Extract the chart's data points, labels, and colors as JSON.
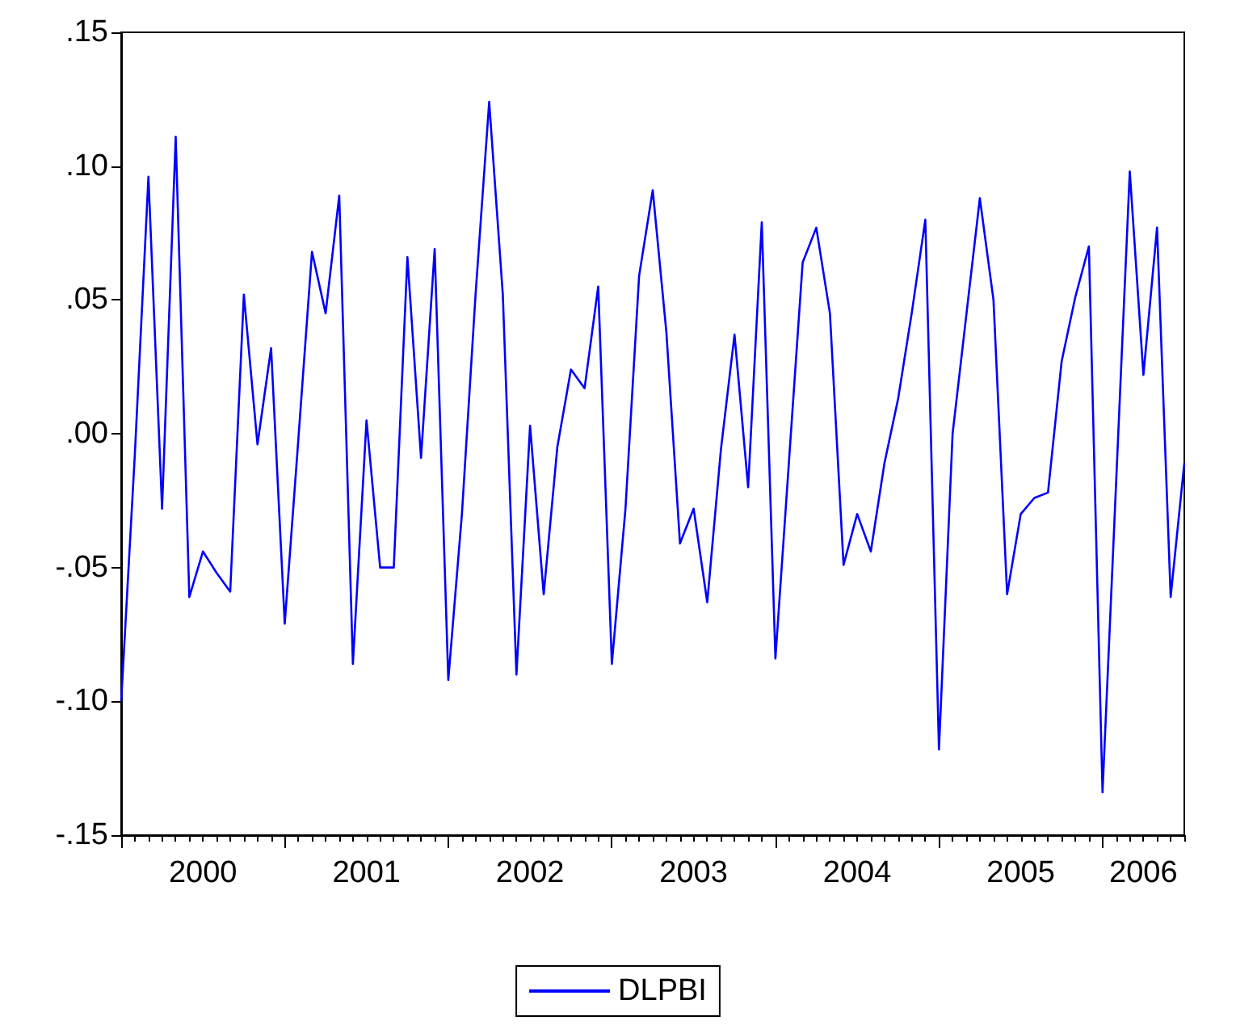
{
  "chart_data": {
    "type": "line",
    "x": [
      "2000-01",
      "2000-02",
      "2000-03",
      "2000-04",
      "2000-05",
      "2000-06",
      "2000-07",
      "2000-08",
      "2000-09",
      "2000-10",
      "2000-11",
      "2000-12",
      "2001-01",
      "2001-02",
      "2001-03",
      "2001-04",
      "2001-05",
      "2001-06",
      "2001-07",
      "2001-08",
      "2001-09",
      "2001-10",
      "2001-11",
      "2001-12",
      "2002-01",
      "2002-02",
      "2002-03",
      "2002-04",
      "2002-05",
      "2002-06",
      "2002-07",
      "2002-08",
      "2002-09",
      "2002-10",
      "2002-11",
      "2002-12",
      "2003-01",
      "2003-02",
      "2003-03",
      "2003-04",
      "2003-05",
      "2003-06",
      "2003-07",
      "2003-08",
      "2003-09",
      "2003-10",
      "2003-11",
      "2003-12",
      "2004-01",
      "2004-02",
      "2004-03",
      "2004-04",
      "2004-05",
      "2004-06",
      "2004-07",
      "2004-08",
      "2004-09",
      "2004-10",
      "2004-11",
      "2004-12",
      "2005-01",
      "2005-02",
      "2005-03",
      "2005-04",
      "2005-05",
      "2005-06",
      "2005-07",
      "2005-08",
      "2005-09",
      "2005-10",
      "2005-11",
      "2005-12",
      "2006-01",
      "2006-02",
      "2006-03",
      "2006-04",
      "2006-05",
      "2006-06",
      "2006-07"
    ],
    "series": [
      {
        "name": "DLPBI",
        "color": "#0000ff",
        "values": [
          -0.1,
          -0.008,
          0.096,
          -0.028,
          0.111,
          -0.061,
          -0.044,
          -0.052,
          -0.059,
          0.052,
          -0.004,
          0.032,
          -0.071,
          -0.002,
          0.068,
          0.045,
          0.089,
          -0.086,
          0.005,
          -0.05,
          -0.05,
          0.066,
          -0.009,
          0.069,
          -0.092,
          -0.03,
          0.052,
          0.124,
          0.052,
          -0.09,
          0.003,
          -0.06,
          -0.005,
          0.024,
          0.017,
          0.055,
          -0.086,
          -0.028,
          0.059,
          0.091,
          0.038,
          -0.041,
          -0.028,
          -0.063,
          -0.006,
          0.037,
          -0.02,
          0.079,
          -0.084,
          -0.01,
          0.064,
          0.077,
          0.045,
          -0.049,
          -0.03,
          -0.044,
          -0.011,
          0.013,
          0.045,
          0.08,
          -0.118,
          0.0,
          0.044,
          0.088,
          0.05,
          -0.06,
          -0.03,
          -0.024,
          -0.022,
          0.027,
          0.051,
          0.07,
          -0.134,
          -0.018,
          0.098,
          0.022,
          0.077,
          -0.061,
          -0.011
        ]
      }
    ],
    "xlim": [
      "2000-01",
      "2006-07"
    ],
    "xticks": [
      {
        "value": "2000-01",
        "label": null
      },
      {
        "value": "2000-07",
        "label": "2000"
      },
      {
        "value": "2001-01",
        "label": null
      },
      {
        "value": "2001-07",
        "label": "2001"
      },
      {
        "value": "2002-01",
        "label": null
      },
      {
        "value": "2002-07",
        "label": "2002"
      },
      {
        "value": "2003-01",
        "label": null
      },
      {
        "value": "2003-07",
        "label": "2003"
      },
      {
        "value": "2004-01",
        "label": null
      },
      {
        "value": "2004-07",
        "label": "2004"
      },
      {
        "value": "2005-01",
        "label": null
      },
      {
        "value": "2005-07",
        "label": "2005"
      },
      {
        "value": "2006-01",
        "label": null
      },
      {
        "value": "2006-04",
        "label": "2006"
      }
    ],
    "ylim": [
      -0.15,
      0.15
    ],
    "yticks": [
      {
        "value": -0.15,
        "label": "-.15"
      },
      {
        "value": -0.1,
        "label": "-.10"
      },
      {
        "value": -0.05,
        "label": "-.05"
      },
      {
        "value": 0,
        "label": ".00"
      },
      {
        "value": 0.05,
        "label": ".05"
      },
      {
        "value": 0.1,
        "label": ".10"
      },
      {
        "value": 0.15,
        "label": ".15"
      }
    ],
    "grid": false,
    "legend": "bottom",
    "marker": "none",
    "line_style": "solid"
  }
}
